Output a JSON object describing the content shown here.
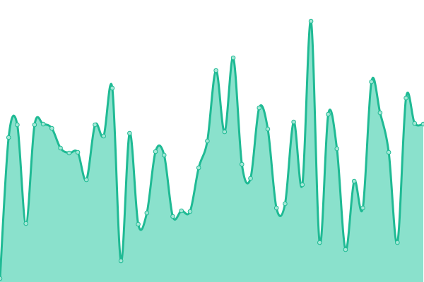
{
  "chart_data": {
    "type": "area",
    "smooth": true,
    "markers": true,
    "color": "#1fba94",
    "fill_color": "#8ae1cc",
    "ylim": [
      0,
      400
    ],
    "values": [
      5,
      205,
      223,
      83,
      223,
      224,
      218,
      190,
      183,
      184,
      145,
      223,
      207,
      275,
      30,
      211,
      82,
      98,
      185,
      180,
      93,
      101,
      100,
      162,
      200,
      300,
      213,
      318,
      167,
      147,
      247,
      217,
      105,
      111,
      227,
      138,
      370,
      56,
      238,
      189,
      46,
      143,
      105,
      284,
      240,
      184,
      56,
      261,
      225,
      224
    ]
  }
}
